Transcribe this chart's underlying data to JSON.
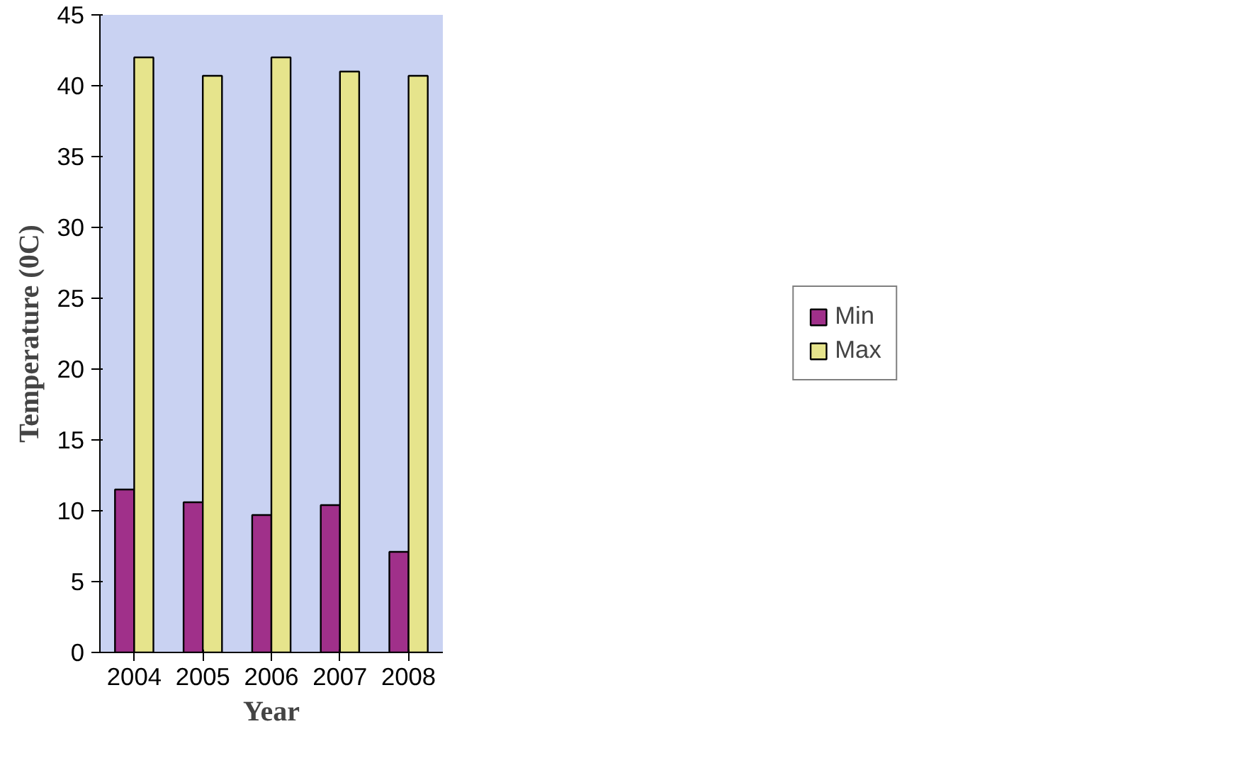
{
  "chart_data": {
    "type": "bar",
    "xlabel": "Year",
    "ylabel": "Temperature (0C)",
    "categories": [
      "2004",
      "2005",
      "2006",
      "2007",
      "2008"
    ],
    "series": [
      {
        "name": "Min",
        "color": "#a0308a",
        "values": [
          11.5,
          10.6,
          9.7,
          10.4,
          7.1
        ]
      },
      {
        "name": "Max",
        "color": "#e6e48c",
        "values": [
          42.0,
          40.7,
          42.0,
          41.0,
          40.7
        ]
      }
    ],
    "ylim": [
      0,
      45
    ],
    "yticks": [
      0,
      5,
      10,
      15,
      20,
      25,
      30,
      35,
      40,
      45
    ],
    "grid": false,
    "legend": "right"
  }
}
